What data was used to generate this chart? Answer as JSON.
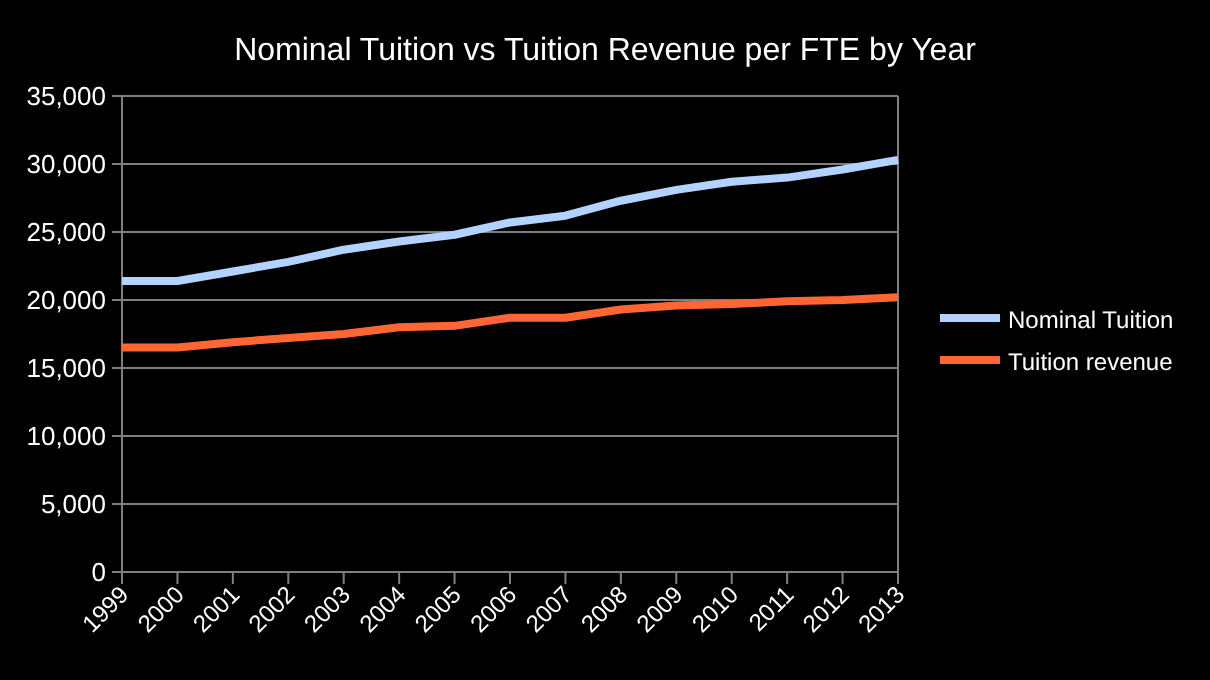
{
  "chart_data": {
    "type": "line",
    "title": "Nominal Tuition vs Tuition Revenue per FTE by Year",
    "categories": [
      "1999",
      "2000",
      "2001",
      "2002",
      "2003",
      "2004",
      "2005",
      "2006",
      "2007",
      "2008",
      "2009",
      "2010",
      "2011",
      "2012",
      "2013"
    ],
    "series": [
      {
        "name": "Nominal Tuition",
        "color": "#b4d2ff",
        "values": [
          21400,
          21400,
          22100,
          22800,
          23700,
          24300,
          24800,
          25700,
          26200,
          27300,
          28100,
          28700,
          29000,
          29600,
          30300
        ]
      },
      {
        "name": "Tuition revenue",
        "color": "#ff6633",
        "values": [
          16500,
          16500,
          16900,
          17200,
          17500,
          18000,
          18100,
          18700,
          18700,
          19300,
          19600,
          19700,
          19900,
          20000,
          20200
        ]
      }
    ],
    "ylim": [
      0,
      35000
    ],
    "yticks": [
      {
        "value": 0,
        "label": "0"
      },
      {
        "value": 5000,
        "label": "5,000"
      },
      {
        "value": 10000,
        "label": "10,000"
      },
      {
        "value": 15000,
        "label": "15,000"
      },
      {
        "value": 20000,
        "label": "20,000"
      },
      {
        "value": 25000,
        "label": "25,000"
      },
      {
        "value": 30000,
        "label": "30,000"
      },
      {
        "value": 35000,
        "label": "35,000"
      }
    ],
    "grid": "y",
    "legend": "right",
    "marker": "none",
    "line_style": "solid"
  }
}
